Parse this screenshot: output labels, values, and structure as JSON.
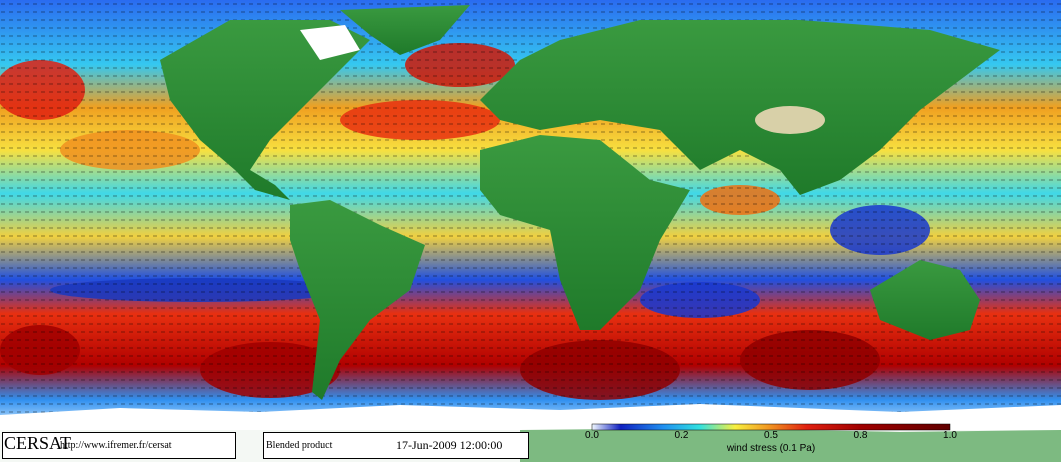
{
  "footer": {
    "logo": "CERSAT",
    "url": "http://www.ifremer.fr/cersat",
    "product": "Blended product",
    "date": "17-Jun-2009 12:00:00"
  },
  "colorbar": {
    "ticks": [
      "0.0",
      "0.2",
      "0.5",
      "0.8",
      "1.0"
    ],
    "label": "wind stress (0.1 Pa)"
  }
}
